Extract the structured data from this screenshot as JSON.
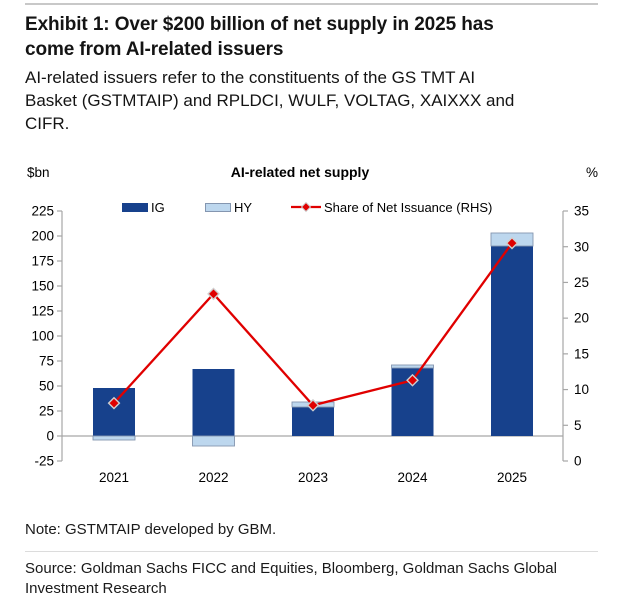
{
  "header": {
    "title": "Exhibit 1: Over $200 billion of net supply in 2025 has come from AI-related issuers",
    "title_lines": [
      "Exhibit 1: Over $200 billion of net supply in 2025 has",
      "come from AI-related issuers"
    ],
    "subtitle": "AI-related issuers refer to the constituents of the GS TMT AI Basket (GSTMTAIP) and RPLDCI, WULF, VOLTAG, XAIXXX and CIFR.",
    "subtitle_lines": [
      "AI-related issuers refer to the constituents of the GS TMT AI",
      "Basket (GSTMTAIP) and RPLDCI, WULF, VOLTAG, XAIXXX and",
      "CIFR."
    ]
  },
  "chart": {
    "title": "AI-related net supply",
    "left_axis_unit": "$bn",
    "right_axis_unit": "%"
  },
  "chart_data": {
    "type": "bar+line",
    "title": "AI-related net supply",
    "categories": [
      "2021",
      "2022",
      "2023",
      "2024",
      "2025"
    ],
    "series": [
      {
        "name": "IG",
        "type": "bar",
        "axis": "left",
        "values": [
          48,
          67,
          29,
          68,
          190
        ],
        "color": "#17418C"
      },
      {
        "name": "HY",
        "type": "bar",
        "axis": "left",
        "values": [
          -4,
          -10,
          5,
          3,
          13
        ],
        "color": "#BDD7EE",
        "border_color": "#8496B0"
      },
      {
        "name": "Share of Net Issuance (RHS)",
        "type": "line",
        "axis": "right",
        "values": [
          8.1,
          23.4,
          7.8,
          11.3,
          30.5
        ],
        "color": "#E00000",
        "marker": "diamond",
        "marker_outline": "#CFCFCF"
      }
    ],
    "left_axis": {
      "label": "$bn",
      "min": -25,
      "max": 225,
      "step": 25
    },
    "right_axis": {
      "label": "%",
      "min": 0,
      "max": 35,
      "step": 5
    },
    "axis_color": "#A6A6A6",
    "grid": "zero-line-only",
    "legend_position": "top"
  },
  "note": "Note: GSTMTAIP developed by GBM.",
  "source": "Source: Goldman Sachs FICC and Equities, Bloomberg, Goldman Sachs Global Investment Research",
  "source_lines": [
    "Source: Goldman Sachs FICC and Equities, Bloomberg, Goldman Sachs Global",
    "Investment Research"
  ]
}
